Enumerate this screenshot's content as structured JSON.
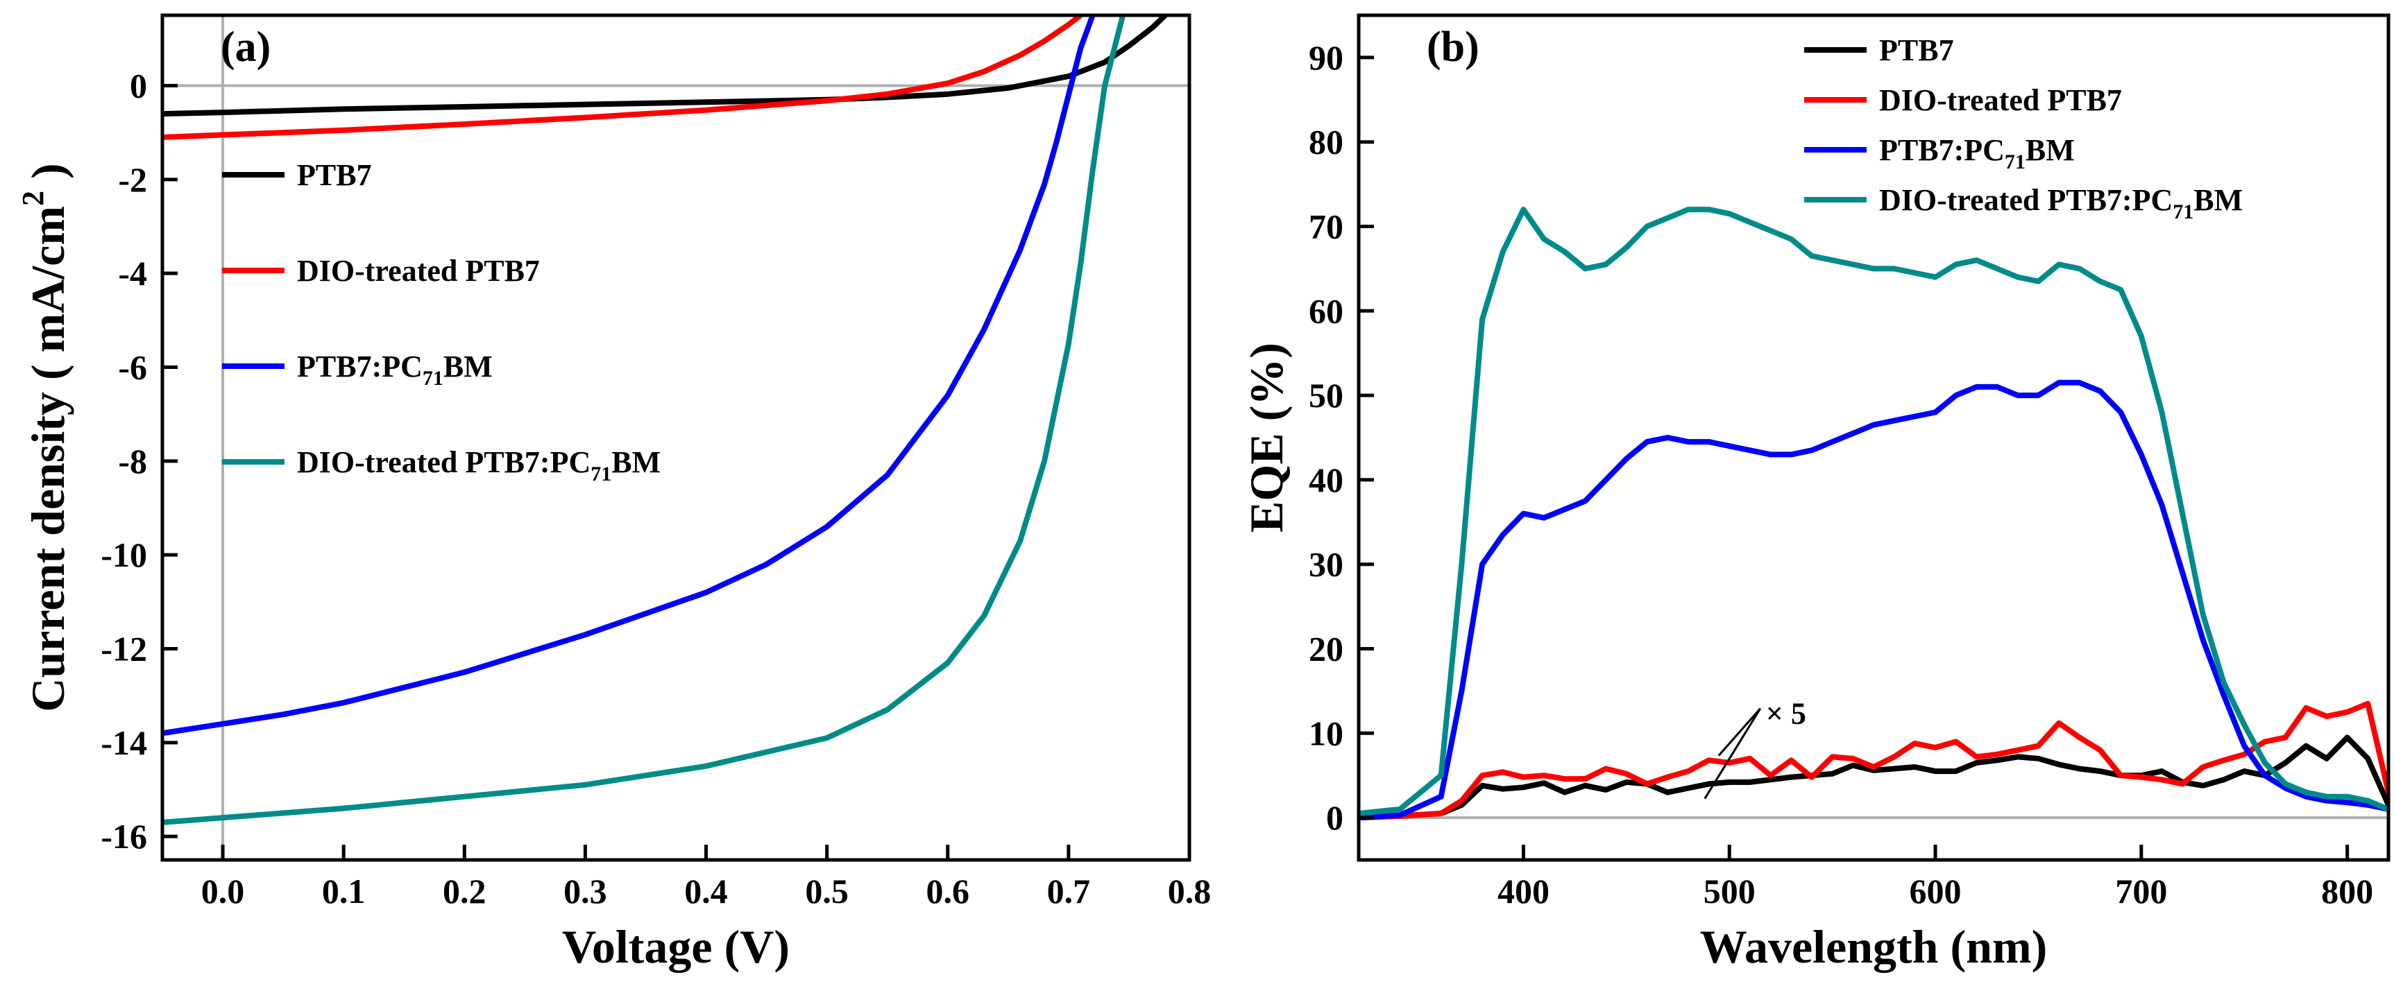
{
  "chart_data": [
    {
      "type": "line",
      "panel_label": "(a)",
      "xlabel": "Voltage (V)",
      "ylabel": "Current density",
      "ylabel_unit_prefix": "( mA/cm",
      "ylabel_unit_sup": "2",
      "ylabel_unit_suffix": " )",
      "xlim": [
        -0.05,
        0.8
      ],
      "ylim": [
        -16.5,
        1.5
      ],
      "xticks": [
        0.0,
        0.1,
        0.2,
        0.3,
        0.4,
        0.5,
        0.6,
        0.7,
        0.8
      ],
      "xtick_labels": [
        "0.0",
        "0.1",
        "0.2",
        "0.3",
        "0.4",
        "0.5",
        "0.6",
        "0.7",
        "0.8"
      ],
      "yticks": [
        0,
        -2,
        -4,
        -6,
        -8,
        -10,
        -12,
        -14,
        -16
      ],
      "ytick_labels": [
        "0",
        "-2",
        "-4",
        "-6",
        "-8",
        "-10",
        "-12",
        "-14",
        "-16"
      ],
      "reference_lines": {
        "x": 0,
        "y": 0
      },
      "legend_position": "center-left",
      "series": [
        {
          "name": "PTB7",
          "label_main": "PTB7",
          "label_sub": "",
          "label_tail": "",
          "color": "#000000",
          "x": [
            -0.05,
            0.0,
            0.1,
            0.2,
            0.3,
            0.4,
            0.5,
            0.55,
            0.6,
            0.65,
            0.7,
            0.73,
            0.75,
            0.77,
            0.78
          ],
          "y": [
            -0.6,
            -0.57,
            -0.5,
            -0.45,
            -0.4,
            -0.35,
            -0.3,
            -0.25,
            -0.18,
            -0.05,
            0.2,
            0.5,
            0.85,
            1.25,
            1.5
          ]
        },
        {
          "name": "DIO-treated PTB7",
          "label_main": "DIO-treated PTB7",
          "label_sub": "",
          "label_tail": "",
          "color": "#ff0000",
          "x": [
            -0.05,
            0.0,
            0.1,
            0.2,
            0.3,
            0.4,
            0.5,
            0.55,
            0.6,
            0.63,
            0.66,
            0.68,
            0.7,
            0.71
          ],
          "y": [
            -1.1,
            -1.05,
            -0.95,
            -0.82,
            -0.68,
            -0.52,
            -0.32,
            -0.18,
            0.05,
            0.3,
            0.65,
            0.95,
            1.3,
            1.5
          ]
        },
        {
          "name": "PTB7:PC71BM",
          "label_main": "PTB7:PC",
          "label_sub": "71",
          "label_tail": "BM",
          "color": "#0000ff",
          "x": [
            -0.05,
            0.0,
            0.05,
            0.1,
            0.2,
            0.3,
            0.4,
            0.45,
            0.5,
            0.55,
            0.6,
            0.63,
            0.66,
            0.68,
            0.69,
            0.7,
            0.71,
            0.72
          ],
          "y": [
            -13.8,
            -13.6,
            -13.4,
            -13.15,
            -12.5,
            -11.7,
            -10.8,
            -10.2,
            -9.4,
            -8.3,
            -6.6,
            -5.2,
            -3.5,
            -2.1,
            -1.2,
            -0.2,
            0.8,
            1.5
          ]
        },
        {
          "name": "DIO-treated PTB7:PC71BM",
          "label_main": "DIO-treated PTB7:PC",
          "label_sub": "71",
          "label_tail": "BM",
          "color": "#008b8b",
          "x": [
            -0.05,
            0.0,
            0.1,
            0.2,
            0.3,
            0.4,
            0.5,
            0.55,
            0.6,
            0.63,
            0.66,
            0.68,
            0.7,
            0.71,
            0.72,
            0.73,
            0.74,
            0.745
          ],
          "y": [
            -15.7,
            -15.6,
            -15.4,
            -15.15,
            -14.9,
            -14.5,
            -13.9,
            -13.3,
            -12.3,
            -11.3,
            -9.7,
            -8.0,
            -5.5,
            -3.8,
            -1.8,
            0.0,
            1.0,
            1.5
          ]
        }
      ]
    },
    {
      "type": "line",
      "panel_label": "(b)",
      "xlabel": "Wavelength (nm)",
      "ylabel": "EQE (%)",
      "xlim": [
        320,
        820
      ],
      "ylim": [
        -5,
        95
      ],
      "xticks": [
        400,
        500,
        600,
        700,
        800
      ],
      "xtick_labels": [
        "400",
        "500",
        "600",
        "700",
        "800"
      ],
      "yticks": [
        0,
        10,
        20,
        30,
        40,
        50,
        60,
        70,
        80,
        90
      ],
      "ytick_labels": [
        "0",
        "10",
        "20",
        "30",
        "40",
        "50",
        "60",
        "70",
        "80",
        "90"
      ],
      "reference_lines": {
        "y": 0
      },
      "annotation": {
        "text": "× 5",
        "target_x": 515,
        "target_y": 8
      },
      "legend_position": "top-right",
      "series": [
        {
          "name": "PTB7",
          "label_main": "PTB7",
          "label_sub": "",
          "label_tail": "",
          "color": "#000000",
          "x": [
            320,
            340,
            360,
            370,
            380,
            390,
            400,
            410,
            420,
            430,
            440,
            450,
            460,
            470,
            480,
            490,
            500,
            510,
            520,
            530,
            540,
            550,
            560,
            570,
            580,
            590,
            600,
            610,
            620,
            630,
            640,
            650,
            660,
            670,
            680,
            690,
            700,
            710,
            720,
            730,
            740,
            750,
            760,
            770,
            780,
            790,
            800,
            810,
            820
          ],
          "y": [
            0,
            0.2,
            0.5,
            1.5,
            3.8,
            3.4,
            3.6,
            4.1,
            3.0,
            3.8,
            3.3,
            4.2,
            4.0,
            3.0,
            3.5,
            4.0,
            4.2,
            4.2,
            4.5,
            4.8,
            5.0,
            5.2,
            6.2,
            5.6,
            5.8,
            6.0,
            5.5,
            5.5,
            6.5,
            6.8,
            7.2,
            7.0,
            6.3,
            5.8,
            5.5,
            5.0,
            5.0,
            5.5,
            4.2,
            3.8,
            4.5,
            5.5,
            5.0,
            6.5,
            8.5,
            7.0,
            9.5,
            7.0,
            1.5
          ]
        },
        {
          "name": "DIO-treated PTB7",
          "label_main": "DIO-treated PTB7",
          "label_sub": "",
          "label_tail": "",
          "color": "#ff0000",
          "x": [
            320,
            340,
            360,
            370,
            380,
            390,
            400,
            410,
            420,
            430,
            440,
            450,
            460,
            470,
            480,
            490,
            500,
            510,
            520,
            530,
            540,
            550,
            560,
            570,
            580,
            590,
            600,
            610,
            620,
            630,
            640,
            650,
            660,
            670,
            680,
            690,
            700,
            710,
            720,
            730,
            740,
            750,
            760,
            770,
            780,
            790,
            800,
            810,
            820
          ],
          "y": [
            0,
            0.2,
            0.5,
            2.0,
            5.0,
            5.4,
            4.8,
            5.0,
            4.6,
            4.6,
            5.8,
            5.2,
            4.0,
            4.8,
            5.5,
            6.8,
            6.5,
            7.0,
            5.0,
            6.8,
            4.8,
            7.2,
            7.0,
            6.0,
            7.2,
            8.8,
            8.3,
            9.0,
            7.2,
            7.5,
            8.0,
            8.5,
            11.2,
            9.5,
            8.0,
            5.0,
            4.8,
            4.5,
            4.0,
            6.0,
            6.8,
            7.5,
            9.0,
            9.5,
            13.0,
            12.0,
            12.5,
            13.5,
            3.0
          ]
        },
        {
          "name": "PTB7:PC71BM",
          "label_main": "PTB7:PC",
          "label_sub": "71",
          "label_tail": "BM",
          "color": "#0000ff",
          "x": [
            320,
            340,
            360,
            370,
            380,
            390,
            400,
            410,
            420,
            430,
            440,
            450,
            460,
            470,
            480,
            490,
            500,
            510,
            520,
            530,
            540,
            550,
            560,
            570,
            580,
            590,
            600,
            610,
            620,
            630,
            640,
            650,
            660,
            670,
            680,
            690,
            700,
            710,
            720,
            730,
            740,
            750,
            760,
            770,
            780,
            790,
            800,
            810,
            820
          ],
          "y": [
            0,
            0.3,
            2.5,
            15.0,
            30.0,
            33.5,
            36.0,
            35.5,
            36.5,
            37.5,
            40.0,
            42.5,
            44.5,
            45.0,
            44.5,
            44.5,
            44.0,
            43.5,
            43.0,
            43.0,
            43.5,
            44.5,
            45.5,
            46.5,
            47.0,
            47.5,
            48.0,
            50.0,
            51.0,
            51.0,
            50.0,
            50.0,
            51.5,
            51.5,
            50.5,
            48.0,
            43.0,
            37.0,
            29.0,
            21.0,
            14.5,
            8.5,
            5.0,
            3.5,
            2.5,
            2.0,
            1.8,
            1.5,
            1.0
          ]
        },
        {
          "name": "DIO-treated PTB7:PC71BM",
          "label_main": "DIO-treated PTB7:PC",
          "label_sub": "71",
          "label_tail": "BM",
          "color": "#008b8b",
          "x": [
            320,
            340,
            360,
            370,
            380,
            390,
            400,
            410,
            420,
            430,
            440,
            450,
            460,
            470,
            480,
            490,
            500,
            510,
            520,
            530,
            540,
            550,
            560,
            570,
            580,
            590,
            600,
            610,
            620,
            630,
            640,
            650,
            660,
            670,
            680,
            690,
            700,
            710,
            720,
            730,
            740,
            750,
            760,
            770,
            780,
            790,
            800,
            810,
            820
          ],
          "y": [
            0.5,
            1.0,
            5.0,
            30.0,
            59.0,
            67.0,
            72.0,
            68.5,
            67.0,
            65.0,
            65.5,
            67.5,
            70.0,
            71.0,
            72.0,
            72.0,
            71.5,
            70.5,
            69.5,
            68.5,
            66.5,
            66.0,
            65.5,
            65.0,
            65.0,
            64.5,
            64.0,
            65.5,
            66.0,
            65.0,
            64.0,
            63.5,
            65.5,
            65.0,
            63.5,
            62.5,
            57.0,
            48.0,
            36.0,
            24.0,
            16.0,
            11.0,
            6.5,
            4.0,
            3.0,
            2.5,
            2.5,
            2.0,
            1.0
          ]
        }
      ]
    }
  ]
}
